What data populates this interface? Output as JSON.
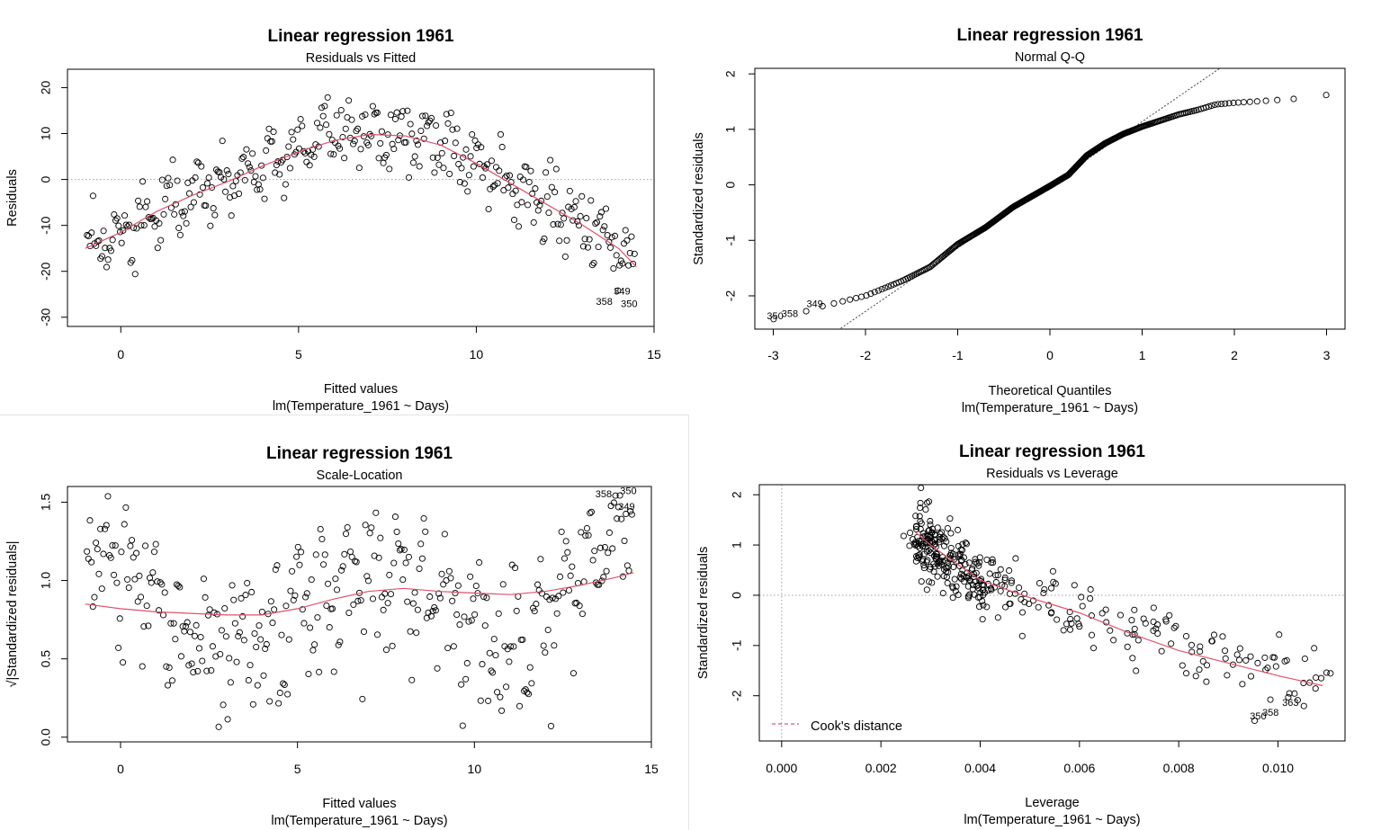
{
  "panels": [
    {
      "id": "residuals-vs-fitted",
      "title": "Linear regression 1961",
      "subtitle": "Residuals vs Fitted",
      "xlabel": "Fitted values",
      "caption": "lm(Temperature_1961 ~ Days)",
      "ylabel": "Residuals",
      "xticks": [
        "0",
        "5",
        "10",
        "15"
      ],
      "yticks": [
        "-30",
        "-20",
        "-10",
        "0",
        "10",
        "20"
      ],
      "point_labels": [
        "358",
        "349",
        "350"
      ]
    },
    {
      "id": "normal-qq",
      "title": "Linear regression 1961",
      "subtitle": "Normal Q-Q",
      "xlabel": "Theoretical Quantiles",
      "caption": "lm(Temperature_1961 ~ Days)",
      "ylabel": "Standardized residuals",
      "xticks": [
        "-3",
        "-2",
        "-1",
        "0",
        "1",
        "2",
        "3"
      ],
      "yticks": [
        "-2",
        "-1",
        "0",
        "1",
        "2"
      ],
      "point_labels": [
        "350",
        "358",
        "349"
      ]
    },
    {
      "id": "scale-location",
      "title": "Linear regression 1961",
      "subtitle": "Scale-Location",
      "xlabel": "Fitted values",
      "caption": "lm(Temperature_1961 ~ Days)",
      "ylabel": "√|Standardized residuals|",
      "xticks": [
        "0",
        "5",
        "10",
        "15"
      ],
      "yticks": [
        "0.0",
        "0.5",
        "1.0",
        "1.5"
      ],
      "point_labels": [
        "358",
        "350",
        "349"
      ]
    },
    {
      "id": "residuals-vs-leverage",
      "title": "Linear regression 1961",
      "subtitle": "Residuals vs Leverage",
      "xlabel": "Leverage",
      "caption": "lm(Temperature_1961 ~ Days)",
      "ylabel": "Standardized residuals",
      "xticks": [
        "0.000",
        "0.002",
        "0.004",
        "0.006",
        "0.008",
        "0.010"
      ],
      "yticks": [
        "-2",
        "-1",
        "0",
        "1",
        "2"
      ],
      "point_labels": [
        "363",
        "358",
        "350"
      ],
      "legend": "Cook's distance"
    }
  ],
  "colors": {
    "points": "#000000",
    "smoother": "#DF536B",
    "reference": "#9e9e9e"
  },
  "chart_data": [
    {
      "type": "scatter",
      "xlim": [
        -1.5,
        15
      ],
      "ylim": [
        -32,
        24
      ],
      "reference_line_y": 0,
      "smoother": [
        [
          -1,
          -15
        ],
        [
          0,
          -11.5
        ],
        [
          1,
          -7
        ],
        [
          2,
          -3.5
        ],
        [
          3,
          -0.5
        ],
        [
          4,
          3
        ],
        [
          5,
          6
        ],
        [
          6,
          8.5
        ],
        [
          7,
          9.8
        ],
        [
          8,
          9.5
        ],
        [
          9,
          7.5
        ],
        [
          10,
          3.5
        ],
        [
          11,
          -1
        ],
        [
          12,
          -5.5
        ],
        [
          13,
          -10
        ],
        [
          14,
          -15
        ],
        [
          14.5,
          -19
        ]
      ],
      "point_labels": [
        {
          "label": "358",
          "x": 13.6,
          "y": -27.3
        },
        {
          "label": "349",
          "x": 14.1,
          "y": -25
        },
        {
          "label": "350",
          "x": 14.3,
          "y": -27.8
        }
      ]
    },
    {
      "type": "scatter",
      "xlim": [
        -3.2,
        3.2
      ],
      "ylim": [
        -2.6,
        2.1
      ],
      "reference_line": {
        "slope": 1.14,
        "intercept": 0
      },
      "curve": [
        [
          -3,
          -2.42
        ],
        [
          -2.8,
          -2.36
        ],
        [
          -2.5,
          -2.2
        ],
        [
          -2,
          -2
        ],
        [
          -1.6,
          -1.73
        ],
        [
          -1.3,
          -1.48
        ],
        [
          -1,
          -1.07
        ],
        [
          -0.7,
          -0.77
        ],
        [
          -0.4,
          -0.4
        ],
        [
          0,
          -0.02
        ],
        [
          0.2,
          0.18
        ],
        [
          0.4,
          0.53
        ],
        [
          0.6,
          0.75
        ],
        [
          0.8,
          0.92
        ],
        [
          1,
          1.05
        ],
        [
          1.2,
          1.16
        ],
        [
          1.4,
          1.27
        ],
        [
          1.6,
          1.35
        ],
        [
          1.8,
          1.45
        ],
        [
          2,
          1.48
        ],
        [
          2.3,
          1.51
        ],
        [
          2.65,
          1.55
        ],
        [
          3,
          1.62
        ]
      ],
      "point_labels": [
        {
          "label": "350",
          "x": -2.98,
          "y": -2.42
        },
        {
          "label": "358",
          "x": -2.82,
          "y": -2.38
        },
        {
          "label": "349",
          "x": -2.55,
          "y": -2.2
        }
      ]
    },
    {
      "type": "scatter",
      "xlim": [
        -1.5,
        15
      ],
      "ylim": [
        -0.03,
        1.6
      ],
      "smoother": [
        [
          -1,
          0.85
        ],
        [
          0,
          0.82
        ],
        [
          1,
          0.8
        ],
        [
          2,
          0.79
        ],
        [
          3,
          0.78
        ],
        [
          4,
          0.78
        ],
        [
          5,
          0.82
        ],
        [
          6,
          0.88
        ],
        [
          7,
          0.93
        ],
        [
          8,
          0.95
        ],
        [
          9,
          0.93
        ],
        [
          10,
          0.92
        ],
        [
          11,
          0.91
        ],
        [
          12,
          0.93
        ],
        [
          13,
          0.97
        ],
        [
          14,
          1.02
        ],
        [
          14.5,
          1.05
        ]
      ],
      "point_labels": [
        {
          "label": "358",
          "x": 13.65,
          "y": 1.53
        },
        {
          "label": "350",
          "x": 14.35,
          "y": 1.55
        },
        {
          "label": "349",
          "x": 14.3,
          "y": 1.45
        }
      ]
    },
    {
      "type": "scatter",
      "xlim": [
        -0.00045,
        0.01135
      ],
      "ylim": [
        -2.9,
        2.2
      ],
      "reference_line_y": 0,
      "reference_line_x": 0,
      "smoother": [
        [
          0.0027,
          1.25
        ],
        [
          0.003,
          1.0
        ],
        [
          0.0035,
          0.65
        ],
        [
          0.004,
          0.3
        ],
        [
          0.005,
          -0.05
        ],
        [
          0.006,
          -0.35
        ],
        [
          0.007,
          -0.75
        ],
        [
          0.008,
          -1.1
        ],
        [
          0.009,
          -1.35
        ],
        [
          0.01,
          -1.6
        ],
        [
          0.0109,
          -1.8
        ]
      ],
      "point_labels": [
        {
          "label": "363",
          "x": 0.01025,
          "y": -2.2
        },
        {
          "label": "358",
          "x": 0.00985,
          "y": -2.4
        },
        {
          "label": "350",
          "x": 0.0096,
          "y": -2.47
        }
      ]
    }
  ]
}
